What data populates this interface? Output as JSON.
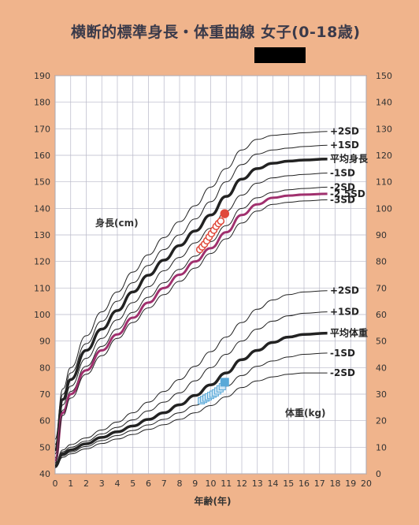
{
  "title": "横断的標準身長・体重曲線 女子(0-18歳)",
  "colors": {
    "background": "#f0b48c",
    "plot_bg": "#ffffff",
    "grid": "#b8b8c8",
    "curve": "#222222",
    "patient_height_line": "#a0306e",
    "patient_height_marker": "#e0483a",
    "patient_weight_marker": "#5aa9d8",
    "redacted_label": "#e0483a"
  },
  "chart_data": {
    "type": "line",
    "x_axis": {
      "label": "年齢(年)",
      "min": 0,
      "max": 20,
      "ticks": [
        0,
        1,
        2,
        3,
        4,
        5,
        6,
        7,
        8,
        9,
        10,
        11,
        12,
        13,
        14,
        15,
        16,
        17,
        18,
        19,
        20
      ]
    },
    "y_axis_left": {
      "min": 40,
      "max": 190,
      "ticks": [
        40,
        50,
        60,
        70,
        80,
        90,
        100,
        110,
        120,
        130,
        140,
        150,
        160,
        170,
        180,
        190
      ]
    },
    "y_axis_right": {
      "min": 0,
      "max": 150,
      "ticks": [
        0,
        10,
        20,
        30,
        40,
        50,
        60,
        70,
        80,
        90,
        100,
        110,
        120,
        130,
        140,
        150
      ]
    },
    "grid": true,
    "height_axis_label": "身長(cm)",
    "weight_axis_label": "体重(kg)",
    "height_ages": [
      0,
      0.5,
      1,
      2,
      3,
      4,
      5,
      6,
      7,
      8,
      9,
      10,
      11,
      12,
      13,
      14,
      15,
      16,
      17.5
    ],
    "height_series": [
      {
        "name": "+2SD",
        "values": [
          53,
          72,
          80,
          92,
          101,
          108.5,
          116,
          122.5,
          129,
          135,
          141,
          148,
          155,
          162,
          166,
          167.5,
          168,
          168.5,
          169
        ]
      },
      {
        "name": "+1SD",
        "values": [
          51,
          70,
          78,
          89,
          97.5,
          105,
          112,
          118.5,
          124.5,
          130,
          136,
          142.5,
          150,
          156.5,
          160.5,
          162,
          162.7,
          163.3,
          163.8
        ]
      },
      {
        "name": "平均身長",
        "values": [
          49,
          68,
          75.5,
          86.5,
          94.5,
          101.5,
          108.5,
          114.8,
          120.5,
          126,
          131.5,
          137.5,
          144.5,
          151,
          155,
          157,
          157.8,
          158.2,
          158.6
        ]
      },
      {
        "name": "-1SD",
        "values": [
          47.5,
          66,
          73,
          83.5,
          91,
          98,
          104.5,
          110.5,
          116.5,
          121.5,
          127,
          132.5,
          139,
          145,
          149.5,
          151.5,
          152.3,
          152.8,
          153.3
        ]
      },
      {
        "name": "-2SD",
        "values": [
          46,
          64,
          71,
          80.5,
          88,
          94.5,
          100.8,
          106.5,
          112,
          117,
          122,
          127.5,
          133.5,
          140,
          144,
          146,
          147,
          147.5,
          148
        ]
      },
      {
        "name": "-2.5SD",
        "values": [
          45,
          63,
          70,
          79,
          86.5,
          92.5,
          98.8,
          104.5,
          110,
          115,
          120,
          125,
          131,
          137.5,
          141.5,
          144,
          144.8,
          145.2,
          145.5
        ]
      },
      {
        "name": "-3SD",
        "values": [
          44,
          62,
          68.5,
          77.5,
          84.5,
          91,
          97,
          102.5,
          107.5,
          112.5,
          117.5,
          123,
          128.5,
          134.5,
          139,
          141.5,
          142.3,
          142.8,
          143.2
        ]
      }
    ],
    "weight_ages": [
      0,
      0.5,
      1,
      2,
      3,
      4,
      5,
      6,
      7,
      8,
      9,
      10,
      11,
      12,
      13,
      14,
      15,
      16,
      17.5
    ],
    "weight_series": [
      {
        "name": "+2SD",
        "values": [
          4,
          9,
          11,
          13.5,
          16.5,
          19.5,
          23,
          27,
          31,
          35.5,
          40.5,
          46,
          51.5,
          57,
          62,
          65.5,
          67.5,
          68.5,
          69
        ]
      },
      {
        "name": "+1SD",
        "values": [
          3.5,
          8.3,
          10,
          12.3,
          15,
          17.5,
          20.3,
          23.7,
          27,
          30.5,
          35,
          40,
          45,
          50,
          54.5,
          57.5,
          59.5,
          60.5,
          61
        ]
      },
      {
        "name": "平均体重",
        "values": [
          3,
          7.5,
          9,
          11.3,
          13.7,
          15.8,
          18,
          20.5,
          23,
          26,
          29.5,
          33.5,
          38,
          43,
          46.5,
          49.5,
          51.5,
          52.5,
          53
        ]
      },
      {
        "name": "-1SD",
        "values": [
          2.7,
          6.8,
          8.2,
          10.3,
          12.5,
          14.4,
          16.3,
          18.4,
          20.5,
          23,
          25.8,
          29,
          33,
          37,
          40.5,
          42.5,
          44,
          45,
          45.5
        ]
      },
      {
        "name": "-2SD",
        "values": [
          2.3,
          6.2,
          7.5,
          9.4,
          11.4,
          13.1,
          14.8,
          16.7,
          18.5,
          20.5,
          23,
          25.7,
          29,
          32.5,
          35,
          36.5,
          37.5,
          38,
          38
        ]
      }
    ],
    "patient_height": {
      "ages": [
        9.3,
        9.45,
        9.6,
        9.75,
        9.9,
        10.05,
        10.2,
        10.35,
        10.5,
        10.65,
        10.9
      ],
      "values": [
        124.5,
        125.5,
        126.5,
        127.8,
        129.2,
        130.5,
        131.8,
        133.2,
        134.3,
        135.2,
        138
      ]
    },
    "patient_weight": {
      "ages": [
        9.4,
        9.55,
        9.7,
        9.85,
        10.0,
        10.15,
        10.3,
        10.45,
        10.6,
        10.75,
        10.9
      ],
      "values": [
        27.5,
        28,
        28.5,
        29,
        29.5,
        30,
        30.5,
        31.2,
        32,
        32.8,
        34.5
      ]
    }
  }
}
